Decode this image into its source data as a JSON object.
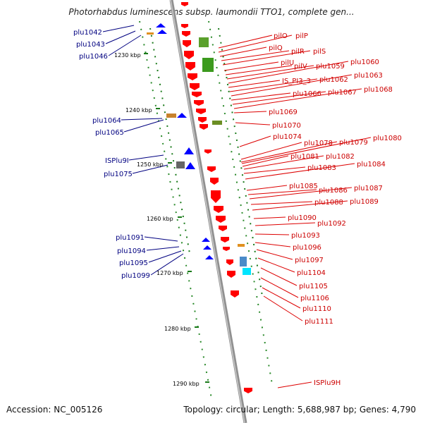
{
  "title": "Photorhabdus luminescens subsp. laumondii TTO1, complete gen...",
  "footer": {
    "accession": "Accession: NC_005126",
    "topology": "Topology: circular; Length: 5,688,987 bp; Genes: 4,790"
  },
  "colors": {
    "backbone": "#888888",
    "forward_gene": "#0000ff",
    "reverse_gene": "#ff0000",
    "left_label": "#000080",
    "right_label": "#cc0000",
    "scale_tick": "#1a7a1a"
  },
  "scale_labels": [
    "1230 kbp",
    "1240 kbp",
    "1250 kbp",
    "1260 kbp",
    "1270 kbp",
    "1280 kbp",
    "1290 kbp"
  ],
  "left_labels": [
    "plu1042",
    "plu1043",
    "plu1046",
    "plu1064",
    "plu1065",
    "ISPlu9I",
    "plu1075",
    "plu1091",
    "plu1094",
    "plu1095",
    "plu1099"
  ],
  "right_labels": [
    "pilO",
    "pilP",
    "pilQ",
    "pilR",
    "pilS",
    "pilU",
    "pilV",
    "plu1059",
    "plu1060",
    "IS_PI3_3",
    "plu1062",
    "plu1063",
    "plu1066",
    "plu1067",
    "plu1068",
    "plu1069",
    "plu1070",
    "plu1074",
    "plu1078",
    "plu1079",
    "plu1080",
    "plu1081",
    "plu1082",
    "plu1083",
    "plu1084",
    "plu1085",
    "plu1086",
    "plu1087",
    "plu1088",
    "plu1089",
    "plu1090",
    "plu1092",
    "plu1093",
    "plu1096",
    "plu1097",
    "plu1104",
    "plu1105",
    "plu1106",
    "plu1110",
    "plu1111",
    "ISPlu9H"
  ]
}
